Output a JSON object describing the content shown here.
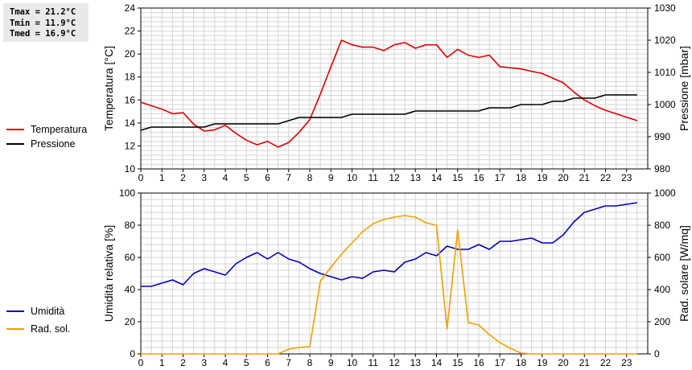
{
  "stats": {
    "tmax": "Tmax = 21.2°C",
    "tmin": "Tmin = 11.9°C",
    "tmed": "Tmed = 16.9°C"
  },
  "colors": {
    "temperature": "#dd0000",
    "pressure": "#000000",
    "humidity": "#0000bb",
    "radiation": "#f0a000",
    "grid": "#d4d4d4"
  },
  "chart_data": [
    {
      "type": "line",
      "x_tick_labels": [
        "0",
        "1",
        "2",
        "3",
        "4",
        "5",
        "6",
        "7",
        "8",
        "9",
        "10",
        "11",
        "12",
        "13",
        "14",
        "15",
        "16",
        "17",
        "18",
        "19",
        "20",
        "21",
        "22",
        "23"
      ],
      "xlim": [
        0,
        24
      ],
      "ylabel": "Temperatura [°C]",
      "ylim": [
        10,
        24
      ],
      "y_ticks": [
        10,
        12,
        14,
        16,
        18,
        20,
        22,
        24
      ],
      "y2label": "Pressione [mbar]",
      "y2lim": [
        980,
        1030
      ],
      "y2_ticks": [
        980,
        990,
        1000,
        1010,
        1020,
        1030
      ],
      "grid": true,
      "legend_position": "left",
      "series": [
        {
          "name": "Temperatura",
          "axis": "left",
          "color": "#dd0000",
          "x": [
            0,
            0.5,
            1,
            1.5,
            2,
            2.5,
            3,
            3.5,
            4,
            4.5,
            5,
            5.5,
            6,
            6.5,
            7,
            7.5,
            8,
            8.5,
            9,
            9.5,
            10,
            10.5,
            11,
            11.5,
            12,
            12.5,
            13,
            13.5,
            14,
            14.5,
            15,
            15.5,
            16,
            16.5,
            17,
            17.5,
            18,
            18.5,
            19,
            19.5,
            20,
            20.5,
            21,
            21.5,
            22,
            22.5,
            23,
            23.5
          ],
          "values": [
            15.8,
            15.5,
            15.2,
            14.8,
            14.9,
            13.9,
            13.3,
            13.4,
            13.8,
            13.1,
            12.5,
            12.1,
            12.4,
            11.9,
            12.3,
            13.2,
            14.3,
            16.5,
            18.9,
            21.2,
            20.8,
            20.6,
            20.6,
            20.3,
            20.8,
            21.0,
            20.5,
            20.8,
            20.8,
            19.7,
            20.4,
            19.9,
            19.7,
            19.9,
            18.9,
            18.8,
            18.7,
            18.5,
            18.3,
            17.9,
            17.5,
            16.7,
            16.0,
            15.5,
            15.1,
            14.8,
            14.5,
            14.2
          ]
        },
        {
          "name": "Pressione",
          "axis": "right",
          "color": "#000000",
          "x": [
            0,
            0.5,
            3,
            3.5,
            6.5,
            7.5,
            9.5,
            10,
            12.5,
            13,
            16,
            16.5,
            17.5,
            18,
            19,
            19.5,
            20,
            20.5,
            21,
            21.5,
            22,
            22.5,
            23.5
          ],
          "values": [
            992,
            993,
            993,
            994,
            994,
            996,
            996,
            997,
            997,
            998,
            998,
            999,
            999,
            1000,
            1000,
            1001,
            1001,
            1002,
            1002,
            1002,
            1003,
            1003,
            1003
          ]
        }
      ]
    },
    {
      "type": "line",
      "x_tick_labels": [
        "0",
        "1",
        "2",
        "3",
        "4",
        "5",
        "6",
        "7",
        "8",
        "9",
        "10",
        "11",
        "12",
        "13",
        "14",
        "15",
        "16",
        "17",
        "18",
        "19",
        "20",
        "21",
        "22",
        "23"
      ],
      "xlim": [
        0,
        24
      ],
      "ylabel": "Umidità relativa [%]",
      "ylim": [
        0,
        100
      ],
      "y_ticks": [
        0,
        20,
        40,
        60,
        80,
        100
      ],
      "y2label": "Rad. solare [W/mq]",
      "y2lim": [
        0,
        1000
      ],
      "y2_ticks": [
        0,
        200,
        400,
        600,
        800,
        1000
      ],
      "grid": true,
      "legend_position": "left",
      "series": [
        {
          "name": "Umidità",
          "axis": "left",
          "color": "#0000bb",
          "x": [
            0,
            0.5,
            1,
            1.5,
            2,
            2.5,
            3,
            3.5,
            4,
            4.5,
            5,
            5.5,
            6,
            6.5,
            7,
            7.5,
            8,
            8.5,
            9,
            9.5,
            10,
            10.5,
            11,
            11.5,
            12,
            12.5,
            13,
            13.5,
            14,
            14.5,
            15,
            15.5,
            16,
            16.5,
            17,
            17.5,
            18,
            18.5,
            19,
            19.5,
            20,
            20.5,
            21,
            21.5,
            22,
            22.5,
            23,
            23.5
          ],
          "values": [
            42,
            42,
            44,
            46,
            43,
            50,
            53,
            51,
            49,
            56,
            60,
            63,
            59,
            63,
            59,
            57,
            53,
            50,
            48,
            46,
            48,
            47,
            51,
            52,
            51,
            57,
            59,
            63,
            61,
            67,
            65,
            65,
            68,
            65,
            70,
            70,
            71,
            72,
            69,
            69,
            74,
            82,
            88,
            90,
            92,
            92,
            93,
            94
          ]
        },
        {
          "name": "Rad. sol.",
          "axis": "right",
          "color": "#f0a000",
          "x": [
            0,
            0.5,
            1,
            1.5,
            2,
            2.5,
            3,
            3.5,
            4,
            4.5,
            5,
            5.5,
            6,
            6.5,
            7,
            7.5,
            8,
            8.5,
            9,
            9.5,
            10,
            10.5,
            11,
            11.5,
            12,
            12.5,
            13,
            13.5,
            14,
            14.5,
            15,
            15.5,
            16,
            16.5,
            17,
            17.5,
            18,
            18.5,
            19,
            19.5,
            20,
            20.5,
            21,
            21.5,
            22,
            22.5,
            23,
            23.5
          ],
          "values": [
            0,
            0,
            0,
            0,
            0,
            0,
            0,
            0,
            0,
            0,
            0,
            0,
            0,
            0,
            30,
            40,
            45,
            450,
            540,
            620,
            690,
            760,
            810,
            835,
            850,
            860,
            850,
            815,
            800,
            155,
            770,
            195,
            180,
            120,
            70,
            35,
            5,
            0,
            0,
            0,
            0,
            0,
            0,
            0,
            0,
            0,
            0,
            0
          ]
        }
      ]
    }
  ]
}
